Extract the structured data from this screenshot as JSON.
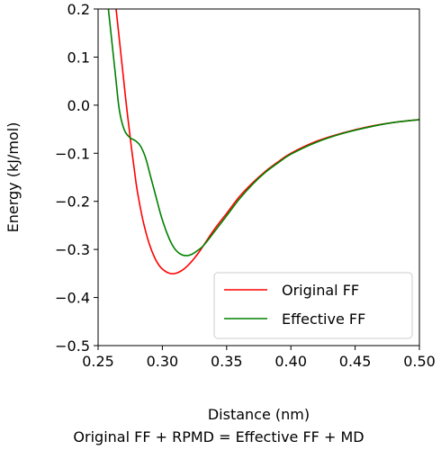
{
  "chart_data": {
    "type": "line",
    "xlabel": "Distance (nm)",
    "ylabel": "Energy (kJ/mol)",
    "caption": "Original FF + RPMD = Effective FF + MD",
    "xlim": [
      0.25,
      0.5
    ],
    "ylim": [
      -0.5,
      0.2
    ],
    "xticks": [
      0.25,
      0.3,
      0.35,
      0.4,
      0.45,
      0.5
    ],
    "xtick_labels": [
      "0.25",
      "0.30",
      "0.35",
      "0.40",
      "0.45",
      "0.50"
    ],
    "yticks": [
      0.2,
      0.1,
      0.0,
      -0.1,
      -0.2,
      -0.3,
      -0.4,
      -0.5
    ],
    "ytick_labels": [
      "0.2",
      "0.1",
      "0.0",
      "−0.1",
      "−0.2",
      "−0.3",
      "−0.4",
      "−0.5"
    ],
    "grid": false,
    "legend_position": "lower-right",
    "series": [
      {
        "name": "Original FF",
        "color": "#ff0000",
        "points": [
          [
            0.264,
            0.2
          ],
          [
            0.266,
            0.15
          ],
          [
            0.268,
            0.1
          ],
          [
            0.27,
            0.05
          ],
          [
            0.272,
            0.0
          ],
          [
            0.274,
            -0.045
          ],
          [
            0.276,
            -0.09
          ],
          [
            0.278,
            -0.13
          ],
          [
            0.28,
            -0.17
          ],
          [
            0.283,
            -0.215
          ],
          [
            0.286,
            -0.252
          ],
          [
            0.29,
            -0.29
          ],
          [
            0.294,
            -0.317
          ],
          [
            0.298,
            -0.335
          ],
          [
            0.302,
            -0.345
          ],
          [
            0.306,
            -0.35
          ],
          [
            0.31,
            -0.35
          ],
          [
            0.315,
            -0.344
          ],
          [
            0.32,
            -0.333
          ],
          [
            0.325,
            -0.318
          ],
          [
            0.33,
            -0.3
          ],
          [
            0.34,
            -0.26
          ],
          [
            0.35,
            -0.225
          ],
          [
            0.36,
            -0.19
          ],
          [
            0.37,
            -0.162
          ],
          [
            0.38,
            -0.138
          ],
          [
            0.39,
            -0.118
          ],
          [
            0.4,
            -0.1
          ],
          [
            0.42,
            -0.075
          ],
          [
            0.44,
            -0.058
          ],
          [
            0.46,
            -0.045
          ],
          [
            0.48,
            -0.036
          ],
          [
            0.5,
            -0.03
          ]
        ]
      },
      {
        "name": "Effective FF",
        "color": "#008000",
        "points": [
          [
            0.258,
            0.2
          ],
          [
            0.26,
            0.15
          ],
          [
            0.262,
            0.1
          ],
          [
            0.264,
            0.05
          ],
          [
            0.266,
            0.0
          ],
          [
            0.268,
            -0.03
          ],
          [
            0.271,
            -0.055
          ],
          [
            0.275,
            -0.068
          ],
          [
            0.279,
            -0.074
          ],
          [
            0.283,
            -0.085
          ],
          [
            0.287,
            -0.11
          ],
          [
            0.291,
            -0.15
          ],
          [
            0.295,
            -0.19
          ],
          [
            0.299,
            -0.23
          ],
          [
            0.303,
            -0.262
          ],
          [
            0.307,
            -0.287
          ],
          [
            0.311,
            -0.303
          ],
          [
            0.315,
            -0.311
          ],
          [
            0.319,
            -0.313
          ],
          [
            0.323,
            -0.31
          ],
          [
            0.327,
            -0.303
          ],
          [
            0.332,
            -0.292
          ],
          [
            0.34,
            -0.265
          ],
          [
            0.35,
            -0.23
          ],
          [
            0.36,
            -0.195
          ],
          [
            0.37,
            -0.165
          ],
          [
            0.38,
            -0.14
          ],
          [
            0.39,
            -0.12
          ],
          [
            0.4,
            -0.102
          ],
          [
            0.42,
            -0.077
          ],
          [
            0.44,
            -0.059
          ],
          [
            0.46,
            -0.046
          ],
          [
            0.48,
            -0.036
          ],
          [
            0.5,
            -0.03
          ]
        ]
      }
    ]
  }
}
